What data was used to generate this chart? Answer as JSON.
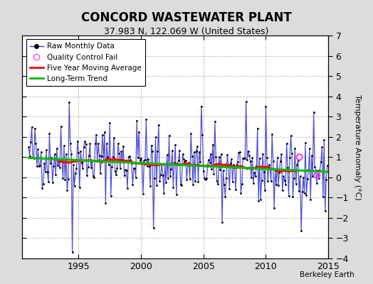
{
  "title": "CONCORD WASTEWATER PLANT",
  "subtitle": "37.983 N, 122.069 W (United States)",
  "ylabel": "Temperature Anomaly (°C)",
  "watermark": "Berkeley Earth",
  "ylim": [
    -4,
    7
  ],
  "yticks": [
    -4,
    -3,
    -2,
    -1,
    0,
    1,
    2,
    3,
    4,
    5,
    6,
    7
  ],
  "xlim": [
    1990.5,
    2015.0
  ],
  "xticks": [
    1995,
    2000,
    2005,
    2010,
    2015
  ],
  "raw_color": "#3333CC",
  "ma_color": "#FF0000",
  "trend_color": "#00BB00",
  "qc_color": "#FF44FF",
  "marker_color": "#000000",
  "bg_color": "#DCDCDC",
  "plot_bg_color": "#FFFFFF",
  "grid_color": "#BBBBBB",
  "title_fontsize": 12,
  "subtitle_fontsize": 9,
  "label_fontsize": 8,
  "tick_fontsize": 9
}
